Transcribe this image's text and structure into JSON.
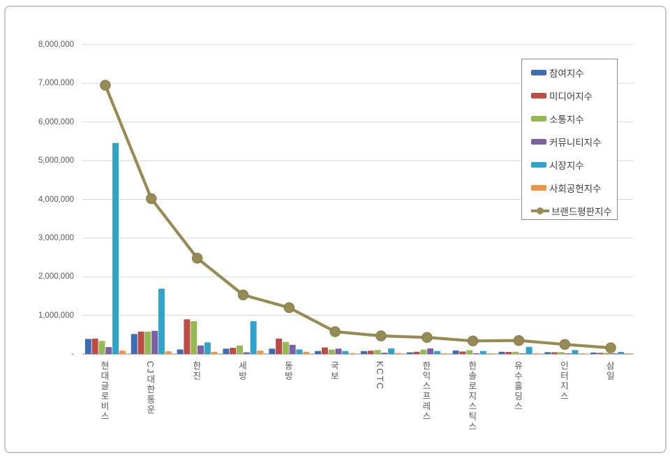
{
  "frame": {
    "border_color": "#c9c9c9"
  },
  "axis": {
    "y_labels": [
      "8,000,000",
      "7,000,000",
      "6,000,000",
      "5,000,000",
      "4,000,000",
      "3,000,000",
      "2,000,000",
      "1,000,000",
      "-"
    ],
    "label_color": "#595959",
    "gridline_color": "#dadada",
    "baseline_color": "#adadad"
  },
  "legend": {
    "border_color": "#8c8c8c",
    "position": "upper-right"
  },
  "chart_data": {
    "type": "bar",
    "subtype": "grouped bars with overlay line",
    "title": "",
    "xlabel": "",
    "ylabel": "",
    "ylim": [
      0,
      8000000
    ],
    "y_tick_step": 1000000,
    "grid": "horizontal",
    "legend_position": "upper-right",
    "categories": [
      "현대글로비스",
      "CJ대한통운",
      "한진",
      "세방",
      "동방",
      "국보",
      "KCTC",
      "한익스프레스",
      "한솔로지스틱스",
      "유수홀딩스",
      "인터지스",
      "삼일"
    ],
    "series": [
      {
        "name": "참여지수",
        "type": "bar",
        "color": "#3e6db6",
        "values": [
          390000,
          520000,
          120000,
          140000,
          140000,
          80000,
          75000,
          45000,
          90000,
          60000,
          50000,
          40000
        ]
      },
      {
        "name": "미디어지수",
        "type": "bar",
        "color": "#bf4b47",
        "values": [
          400000,
          580000,
          900000,
          160000,
          400000,
          170000,
          85000,
          60000,
          65000,
          55000,
          45000,
          30000
        ]
      },
      {
        "name": "소통지수",
        "type": "bar",
        "color": "#97b954",
        "values": [
          340000,
          580000,
          850000,
          220000,
          310000,
          115000,
          105000,
          115000,
          100000,
          60000,
          50000,
          30000
        ]
      },
      {
        "name": "커뮤니티지수",
        "type": "bar",
        "color": "#7d5fa5",
        "values": [
          180000,
          600000,
          220000,
          45000,
          240000,
          140000,
          35000,
          145000,
          20000,
          15000,
          10000,
          8000
        ]
      },
      {
        "name": "시장지수",
        "type": "bar",
        "color": "#2fa3c9",
        "values": [
          5460000,
          1690000,
          300000,
          850000,
          120000,
          75000,
          145000,
          80000,
          80000,
          185000,
          105000,
          55000
        ]
      },
      {
        "name": "사회공헌지수",
        "type": "bar",
        "color": "#f29440",
        "values": [
          85000,
          70000,
          60000,
          85000,
          60000,
          25000,
          25000,
          20000,
          12000,
          20000,
          15000,
          10000
        ]
      },
      {
        "name": "브랜드평판지수",
        "type": "line",
        "color": "#968b52",
        "marker_stroke": "#847a47",
        "values": [
          6950000,
          4020000,
          2480000,
          1530000,
          1200000,
          580000,
          470000,
          430000,
          340000,
          350000,
          250000,
          160000
        ]
      }
    ]
  }
}
